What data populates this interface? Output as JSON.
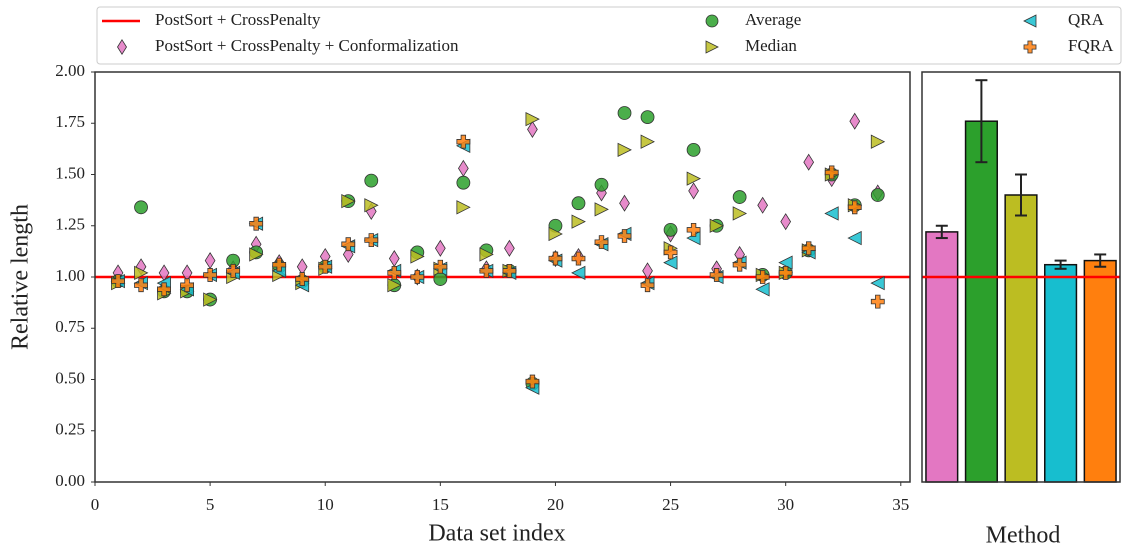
{
  "chart_data": [
    {
      "type": "scatter",
      "xlabel": "Data set index",
      "ylabel": "Relative length",
      "x": [
        1,
        2,
        3,
        4,
        5,
        6,
        7,
        8,
        9,
        10,
        11,
        12,
        13,
        14,
        15,
        16,
        17,
        18,
        19,
        20,
        21,
        22,
        23,
        24,
        25,
        26,
        27,
        28,
        29,
        30,
        31,
        32,
        33,
        34
      ],
      "xlim": [
        0,
        35.4
      ],
      "xticks": [
        0,
        5,
        10,
        15,
        20,
        25,
        30,
        35
      ],
      "ylim": [
        0,
        2
      ],
      "yticks": [
        {
          "value": 0,
          "label": "0.00"
        },
        {
          "value": 0.25,
          "label": "0.25"
        },
        {
          "value": 0.5,
          "label": "0.50"
        },
        {
          "value": 0.75,
          "label": "0.75"
        },
        {
          "value": 1,
          "label": "1.00"
        },
        {
          "value": 1.25,
          "label": "1.25"
        },
        {
          "value": 1.5,
          "label": "1.50"
        },
        {
          "value": 1.75,
          "label": "1.75"
        },
        {
          "value": 2,
          "label": "2.00"
        }
      ],
      "reference_line": {
        "name": "PostSort + CrossPenalty",
        "value": 1,
        "color": "#ff0000"
      },
      "series": [
        {
          "name": "PostSort + CrossPenalty + Conformalization",
          "color": "#e377c2",
          "marker": "diamond",
          "values": [
            1.02,
            1.05,
            1.02,
            1.02,
            1.08,
            1.04,
            1.16,
            1.07,
            1.05,
            1.1,
            1.11,
            1.32,
            1.09,
            1.0,
            1.14,
            1.53,
            1.04,
            1.14,
            1.72,
            1.09,
            1.1,
            1.41,
            1.36,
            1.03,
            1.21,
            1.42,
            1.04,
            1.11,
            1.35,
            1.27,
            1.56,
            1.48,
            1.76,
            1.41
          ]
        },
        {
          "name": "Average",
          "color": "#2ca02c",
          "marker": "circle",
          "values": [
            0.98,
            1.34,
            0.93,
            0.93,
            0.89,
            1.08,
            1.12,
            1.05,
            0.98,
            1.05,
            1.37,
            1.47,
            0.96,
            1.12,
            0.99,
            1.46,
            1.13,
            1.03,
            0.48,
            1.25,
            1.36,
            1.45,
            1.8,
            1.78,
            1.23,
            1.62,
            1.25,
            1.39,
            1.01,
            1.02,
            1.13,
            1.5,
            1.35,
            1.4
          ]
        },
        {
          "name": "Median",
          "color": "#bcbd22",
          "marker": "triangle-right",
          "values": [
            0.97,
            1.02,
            0.92,
            0.93,
            0.89,
            1.0,
            1.11,
            1.01,
            0.97,
            1.04,
            1.37,
            1.35,
            0.96,
            1.1,
            1.04,
            1.34,
            1.11,
            1.03,
            1.77,
            1.21,
            1.27,
            1.33,
            1.62,
            1.66,
            1.14,
            1.48,
            1.25,
            1.31,
            1.01,
            1.02,
            1.13,
            1.5,
            1.35,
            1.66
          ]
        },
        {
          "name": "QRA",
          "color": "#17becf",
          "marker": "triangle-left",
          "values": [
            0.98,
            0.97,
            0.97,
            0.94,
            1.01,
            1.02,
            1.26,
            1.03,
            0.96,
            1.05,
            1.15,
            1.18,
            1.03,
            1.0,
            1.04,
            1.64,
            1.03,
            1.02,
            0.46,
            1.08,
            1.02,
            1.16,
            1.21,
            0.97,
            1.07,
            1.19,
            1.0,
            1.07,
            0.94,
            1.07,
            1.12,
            1.31,
            1.19,
            0.97
          ]
        },
        {
          "name": "FQRA",
          "color": "#ff7f0e",
          "marker": "plus",
          "values": [
            0.98,
            0.96,
            0.94,
            0.96,
            1.01,
            1.03,
            1.26,
            1.06,
            0.99,
            1.05,
            1.16,
            1.18,
            1.02,
            1.0,
            1.05,
            1.66,
            1.03,
            1.03,
            0.49,
            1.09,
            1.09,
            1.17,
            1.2,
            0.96,
            1.12,
            1.23,
            1.01,
            1.06,
            1.0,
            1.02,
            1.14,
            1.51,
            1.34,
            0.88
          ]
        }
      ]
    },
    {
      "type": "bar",
      "xlabel": "Method",
      "categories": [
        null,
        null,
        null,
        null,
        null
      ],
      "values": [
        1.22,
        1.76,
        1.4,
        1.06,
        1.08
      ],
      "errors": [
        0.03,
        0.2,
        0.1,
        0.02,
        0.03
      ],
      "colors": [
        "#e377c2",
        "#2ca02c",
        "#bcbd22",
        "#17becf",
        "#ff7f0e"
      ],
      "ylim": [
        0,
        2
      ],
      "reference_line": {
        "value": 1,
        "color": "#ff0000"
      }
    }
  ]
}
